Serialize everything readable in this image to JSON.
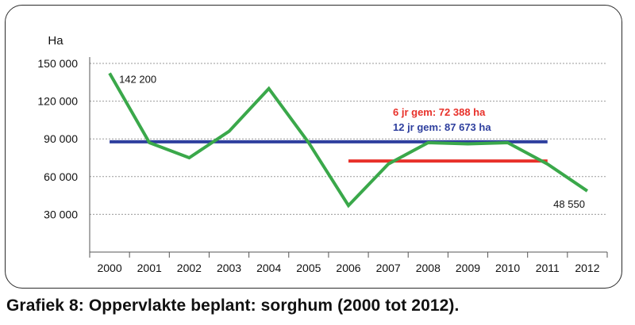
{
  "caption": "Grafiek 8: Oppervlakte beplant: sorghum (2000 tot 2012).",
  "chart_data": {
    "type": "line",
    "ylabel": "Ha",
    "ylim": [
      0,
      150000
    ],
    "yticks": [
      30000,
      60000,
      90000,
      120000,
      150000
    ],
    "ytick_labels": [
      "30 000",
      "60 000",
      "90 000",
      "120 000",
      "150 000"
    ],
    "grid": "horizontal dotted",
    "categories": [
      "2000",
      "2001",
      "2002",
      "2003",
      "2004",
      "2005",
      "2006",
      "2007",
      "2008",
      "2009",
      "2010",
      "2011",
      "2012"
    ],
    "series": [
      {
        "color": "#3aa84a",
        "values": [
          142200,
          87000,
          75000,
          96000,
          130000,
          87000,
          37000,
          70000,
          87000,
          86000,
          87000,
          70000,
          48550
        ]
      }
    ],
    "reference_lines": [
      {
        "label": "12 jr gem: 87 673 ha",
        "value": 87673,
        "from": "2000",
        "to": "2011",
        "color": "#2e3f9e"
      },
      {
        "label": "6 jr gem: 72 388 ha",
        "value": 72388,
        "from": "2006",
        "to": "2011",
        "color": "#e8312a"
      }
    ],
    "data_labels": [
      {
        "index": 0,
        "text": "142 200"
      },
      {
        "index": 12,
        "text": "48 550"
      }
    ]
  }
}
